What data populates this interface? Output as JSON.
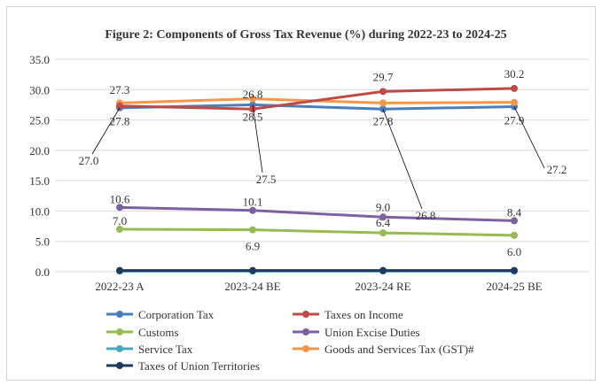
{
  "chart_data": {
    "type": "line",
    "title": "Figure 2: Components of Gross Tax Revenue (%) during 2022-23 to 2024-25",
    "categories": [
      "2022-23 A",
      "2023-24 BE",
      "2023-24 RE",
      "2024-25 BE"
    ],
    "ylim": [
      0,
      35
    ],
    "yticks": [
      "0.0",
      "5.0",
      "10.0",
      "15.0",
      "20.0",
      "25.0",
      "30.0",
      "35.0"
    ],
    "grid": true,
    "legend_position": "bottom",
    "series": [
      {
        "name": "Corporation Tax",
        "color": "#4a7ebb",
        "values": [
          27.0,
          27.5,
          26.8,
          27.2
        ],
        "labels": [
          "27.0",
          "27.5",
          "26.8",
          "27.2"
        ]
      },
      {
        "name": "Taxes on Income",
        "color": "#be4b48",
        "values": [
          27.3,
          26.8,
          29.7,
          30.2
        ],
        "labels": [
          "27.3",
          "26.8",
          "29.7",
          "30.2"
        ]
      },
      {
        "name": "Customs",
        "color": "#98b954",
        "values": [
          7.0,
          6.9,
          6.4,
          6.0
        ],
        "labels": [
          "7.0",
          "6.9",
          "6.4",
          "6.0"
        ]
      },
      {
        "name": "Union Excise Duties",
        "color": "#7d60a0",
        "values": [
          10.6,
          10.1,
          9.0,
          8.4
        ],
        "labels": [
          "10.6",
          "10.1",
          "9.0",
          "8.4"
        ]
      },
      {
        "name": "Service Tax",
        "color": "#46aac5",
        "values": [
          0.1,
          0.1,
          0.1,
          0.1
        ],
        "labels": []
      },
      {
        "name": "Goods and Services Tax (GST)#",
        "color": "#f79646",
        "values": [
          27.8,
          28.5,
          27.8,
          27.9
        ],
        "labels": [
          "27.8",
          "28.5",
          "27.8",
          "27.9"
        ]
      },
      {
        "name": "Taxes of Union Territories",
        "color": "#1f3a5f",
        "values": [
          0.2,
          0.2,
          0.2,
          0.2
        ],
        "labels": []
      }
    ]
  }
}
